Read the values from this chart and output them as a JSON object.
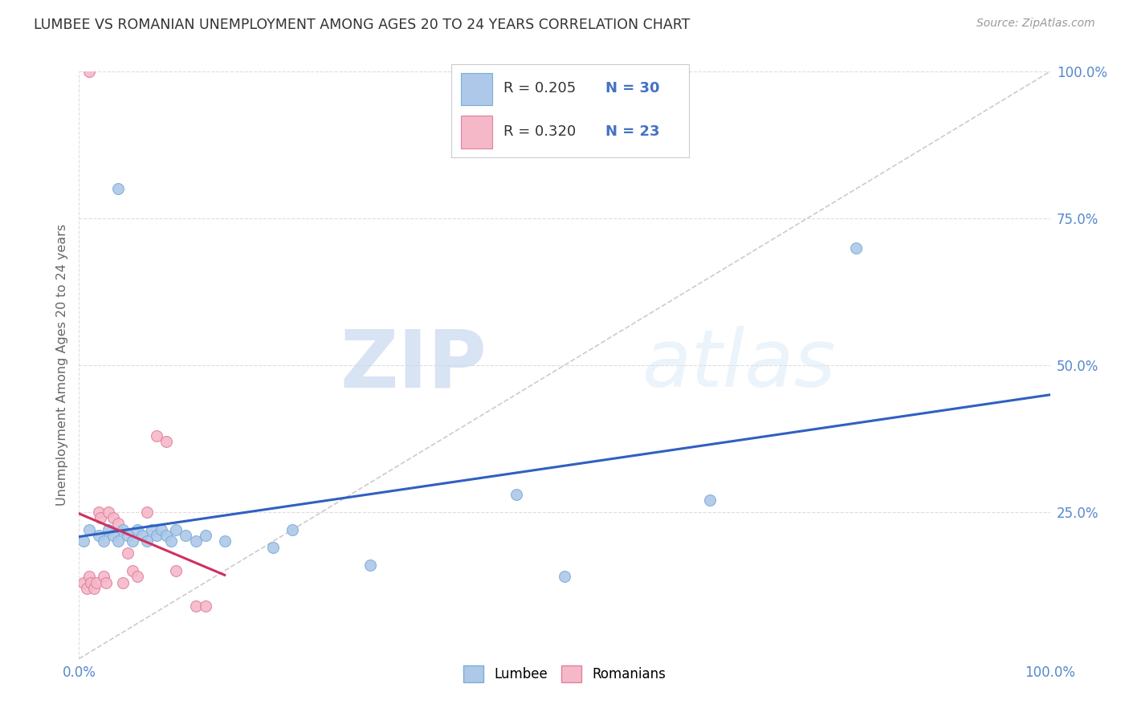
{
  "title": "LUMBEE VS ROMANIAN UNEMPLOYMENT AMONG AGES 20 TO 24 YEARS CORRELATION CHART",
  "source": "Source: ZipAtlas.com",
  "ylabel": "Unemployment Among Ages 20 to 24 years",
  "xlim": [
    0.0,
    1.0
  ],
  "ylim": [
    0.0,
    1.0
  ],
  "xticks": [
    0.0,
    0.25,
    0.5,
    0.75,
    1.0
  ],
  "yticks": [
    0.25,
    0.5,
    0.75,
    1.0
  ],
  "xticklabels": [
    "0.0%",
    "",
    "",
    "",
    "100.0%"
  ],
  "yticklabels": [
    "25.0%",
    "50.0%",
    "75.0%",
    "100.0%"
  ],
  "lumbee_color": "#adc8e8",
  "romanian_color": "#f5b8c8",
  "lumbee_edge_color": "#7aaed6",
  "romanian_edge_color": "#e080a0",
  "trend_lumbee_color": "#3060c0",
  "trend_romanian_color": "#d03060",
  "diagonal_color": "#cccccc",
  "R_lumbee": 0.205,
  "N_lumbee": 30,
  "R_romanian": 0.32,
  "N_romanian": 23,
  "lumbee_x": [
    0.005,
    0.01,
    0.02,
    0.025,
    0.03,
    0.035,
    0.04,
    0.045,
    0.05,
    0.055,
    0.06,
    0.065,
    0.07,
    0.075,
    0.08,
    0.085,
    0.09,
    0.095,
    0.1,
    0.11,
    0.12,
    0.13,
    0.15,
    0.2,
    0.22,
    0.3,
    0.45,
    0.5,
    0.65,
    0.8
  ],
  "lumbee_y": [
    0.2,
    0.22,
    0.21,
    0.2,
    0.22,
    0.21,
    0.2,
    0.22,
    0.21,
    0.2,
    0.22,
    0.21,
    0.2,
    0.22,
    0.21,
    0.22,
    0.21,
    0.2,
    0.22,
    0.21,
    0.2,
    0.21,
    0.2,
    0.19,
    0.22,
    0.16,
    0.28,
    0.14,
    0.27,
    0.7
  ],
  "romanian_x": [
    0.005,
    0.008,
    0.01,
    0.012,
    0.015,
    0.018,
    0.02,
    0.022,
    0.025,
    0.028,
    0.03,
    0.035,
    0.04,
    0.045,
    0.05,
    0.055,
    0.06,
    0.07,
    0.08,
    0.09,
    0.1,
    0.12,
    0.13
  ],
  "romanian_y": [
    0.13,
    0.12,
    0.14,
    0.13,
    0.12,
    0.13,
    0.25,
    0.24,
    0.14,
    0.13,
    0.25,
    0.24,
    0.23,
    0.13,
    0.18,
    0.15,
    0.14,
    0.25,
    0.38,
    0.37,
    0.15,
    0.09,
    0.09
  ],
  "outlier_romanian_x": [
    0.01
  ],
  "outlier_romanian_y": [
    1.0
  ],
  "lumbee_outlier_x": [
    0.04
  ],
  "lumbee_outlier_y": [
    0.8
  ],
  "marker_size": 100,
  "watermark_zip": "ZIP",
  "watermark_atlas": "atlas",
  "legend_color": "#4472c4",
  "background_color": "#ffffff",
  "grid_color": "#dddddd",
  "tick_color": "#5588cc"
}
